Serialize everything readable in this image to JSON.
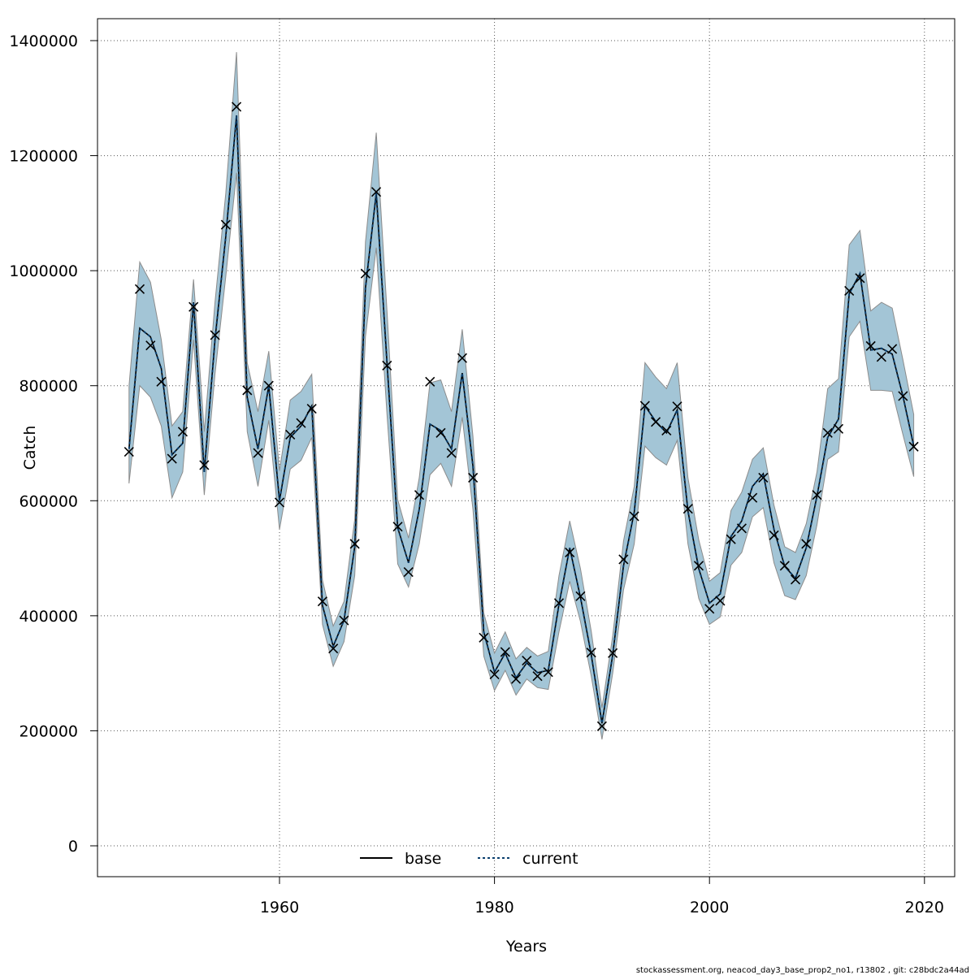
{
  "chart_data": {
    "type": "line",
    "xlabel": "Years",
    "ylabel": "Catch",
    "xlim": [
      1946,
      2019
    ],
    "ylim": [
      0,
      1400000
    ],
    "x_ticks": [
      1960,
      1980,
      2000,
      2020
    ],
    "y_ticks": [
      0,
      200000,
      400000,
      600000,
      800000,
      1000000,
      1200000,
      1400000
    ],
    "grid": true,
    "legend_position": "bottom-center",
    "colors": {
      "band": "#a3c5d6",
      "band_edge": "#8c8c8c",
      "current": "#0a3f6e",
      "base": "#000000",
      "marker": "#000000"
    },
    "x": [
      1946,
      1947,
      1948,
      1949,
      1950,
      1951,
      1952,
      1953,
      1954,
      1955,
      1956,
      1957,
      1958,
      1959,
      1960,
      1961,
      1962,
      1963,
      1964,
      1965,
      1966,
      1967,
      1968,
      1969,
      1970,
      1971,
      1972,
      1973,
      1974,
      1975,
      1976,
      1977,
      1978,
      1979,
      1980,
      1981,
      1982,
      1983,
      1984,
      1985,
      1986,
      1987,
      1988,
      1989,
      1990,
      1991,
      1992,
      1993,
      1994,
      1995,
      1996,
      1997,
      1998,
      1999,
      2000,
      2001,
      2002,
      2003,
      2004,
      2005,
      2006,
      2007,
      2008,
      2009,
      2010,
      2011,
      2012,
      2013,
      2014,
      2015,
      2016,
      2017,
      2018,
      2019
    ],
    "observed": [
      685000,
      968000,
      870000,
      807000,
      673000,
      720000,
      937000,
      662000,
      888000,
      1080000,
      1285000,
      792000,
      683000,
      800000,
      597000,
      715000,
      735000,
      760000,
      425000,
      343000,
      392000,
      525000,
      995000,
      1137000,
      835000,
      555000,
      476000,
      610000,
      807000,
      718000,
      683000,
      848000,
      640000,
      362000,
      298000,
      337000,
      290000,
      322000,
      295000,
      302000,
      422000,
      510000,
      434000,
      336000,
      208000,
      335000,
      498000,
      573000,
      765000,
      737000,
      722000,
      764000,
      586000,
      487000,
      412000,
      426000,
      533000,
      552000,
      605000,
      640000,
      540000,
      487000,
      463000,
      525000,
      610000,
      718000,
      725000,
      965000,
      987000,
      869000,
      850000,
      864000,
      782000,
      694000
    ],
    "series": [
      {
        "name": "base",
        "values": [
          690000,
          900000,
          885000,
          830000,
          680000,
          700000,
          945000,
          650000,
          880000,
          1060000,
          1270000,
          780000,
          690000,
          800000,
          600000,
          710000,
          730000,
          765000,
          418000,
          347000,
          392000,
          520000,
          970000,
          1135000,
          840000,
          553000,
          492000,
          585000,
          733000,
          722000,
          690000,
          822000,
          660000,
          372000,
          302000,
          335000,
          292000,
          318000,
          301000,
          305000,
          420000,
          518000,
          432000,
          332000,
          213000,
          332000,
          487000,
          580000,
          765000,
          738000,
          718000,
          758000,
          582000,
          482000,
          422000,
          438000,
          538000,
          565000,
          625000,
          647000,
          550000,
          486000,
          465000,
          518000,
          608000,
          710000,
          742000,
          960000,
          995000,
          862000,
          865000,
          855000,
          782000,
          695000
        ]
      },
      {
        "name": "current",
        "values": [
          690000,
          900000,
          885000,
          830000,
          680000,
          700000,
          945000,
          650000,
          880000,
          1060000,
          1270000,
          780000,
          690000,
          800000,
          600000,
          710000,
          730000,
          765000,
          418000,
          347000,
          392000,
          520000,
          970000,
          1135000,
          840000,
          553000,
          492000,
          585000,
          733000,
          722000,
          690000,
          822000,
          660000,
          372000,
          302000,
          335000,
          292000,
          318000,
          301000,
          305000,
          420000,
          518000,
          432000,
          332000,
          213000,
          332000,
          487000,
          580000,
          765000,
          738000,
          718000,
          758000,
          582000,
          482000,
          422000,
          438000,
          538000,
          565000,
          625000,
          647000,
          550000,
          486000,
          465000,
          518000,
          608000,
          710000,
          742000,
          960000,
          995000,
          862000,
          865000,
          855000,
          782000,
          695000
        ]
      }
    ],
    "ci_lower": [
      630000,
      800000,
      780000,
      730000,
      605000,
      650000,
      880000,
      610000,
      820000,
      990000,
      1170000,
      720000,
      625000,
      740000,
      550000,
      655000,
      670000,
      710000,
      385000,
      312000,
      355000,
      470000,
      885000,
      1040000,
      750000,
      490000,
      450000,
      525000,
      645000,
      665000,
      625000,
      745000,
      585000,
      330000,
      270000,
      305000,
      262000,
      290000,
      275000,
      272000,
      372000,
      460000,
      390000,
      295000,
      185000,
      300000,
      445000,
      525000,
      695000,
      675000,
      662000,
      705000,
      525000,
      430000,
      385000,
      398000,
      488000,
      510000,
      572000,
      588000,
      492000,
      435000,
      428000,
      470000,
      558000,
      672000,
      685000,
      885000,
      912000,
      792000,
      792000,
      790000,
      715000,
      642000
    ],
    "ci_upper": [
      800000,
      1015000,
      980000,
      880000,
      730000,
      755000,
      985000,
      720000,
      945000,
      1135000,
      1380000,
      840000,
      755000,
      860000,
      652000,
      775000,
      790000,
      820000,
      462000,
      382000,
      425000,
      568000,
      1050000,
      1240000,
      930000,
      602000,
      535000,
      640000,
      805000,
      810000,
      755000,
      898000,
      712000,
      405000,
      335000,
      372000,
      325000,
      345000,
      330000,
      338000,
      470000,
      565000,
      482000,
      373000,
      240000,
      365000,
      530000,
      625000,
      840000,
      815000,
      795000,
      840000,
      640000,
      532000,
      460000,
      475000,
      583000,
      615000,
      672000,
      692000,
      592000,
      520000,
      510000,
      560000,
      650000,
      795000,
      812000,
      1045000,
      1070000,
      930000,
      945000,
      935000,
      845000,
      750000
    ]
  },
  "legend": {
    "items": [
      "base",
      "current"
    ]
  },
  "footer": "stockassessment.org, neacod_day3_base_prop2_no1, r13802 , git: c28bdc2a44ad"
}
